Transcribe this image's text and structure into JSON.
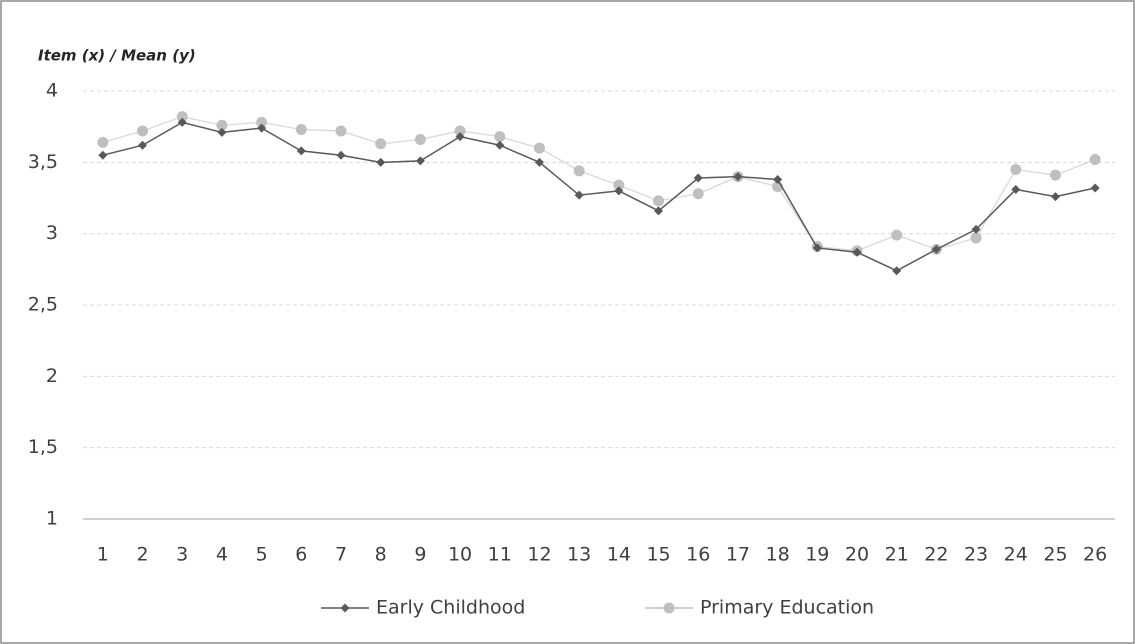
{
  "chart_data": {
    "type": "line",
    "title": "Item (x) / Mean (y)",
    "categories": [
      "1",
      "2",
      "3",
      "4",
      "5",
      "6",
      "7",
      "8",
      "9",
      "10",
      "11",
      "12",
      "13",
      "14",
      "15",
      "16",
      "17",
      "18",
      "19",
      "20",
      "21",
      "22",
      "23",
      "24",
      "25",
      "26"
    ],
    "series": [
      {
        "name": "Early Childhood",
        "color": "#595959",
        "marker": "diamond",
        "values": [
          3.55,
          3.62,
          3.78,
          3.71,
          3.74,
          3.58,
          3.55,
          3.5,
          3.51,
          3.68,
          3.62,
          3.5,
          3.27,
          3.3,
          3.16,
          3.39,
          3.4,
          3.38,
          2.9,
          2.87,
          2.74,
          2.89,
          3.03,
          3.31,
          3.26,
          3.32
        ]
      },
      {
        "name": "Primary Education",
        "color": "#bfbfbf",
        "marker": "circle",
        "values": [
          3.64,
          3.72,
          3.82,
          3.76,
          3.78,
          3.73,
          3.72,
          3.63,
          3.66,
          3.72,
          3.68,
          3.6,
          3.44,
          3.34,
          3.23,
          3.28,
          3.4,
          3.33,
          2.91,
          2.88,
          2.99,
          2.89,
          2.97,
          3.45,
          3.41,
          3.52
        ]
      }
    ],
    "ylim": [
      1,
      4
    ],
    "yticks": [
      1,
      {
        "value": 1.5,
        "label": "1,5"
      },
      2,
      {
        "value": 2.5,
        "label": "2,5"
      },
      3,
      {
        "value": 3.5,
        "label": "3,5"
      },
      4
    ],
    "grid": true,
    "legend": "bottom"
  }
}
